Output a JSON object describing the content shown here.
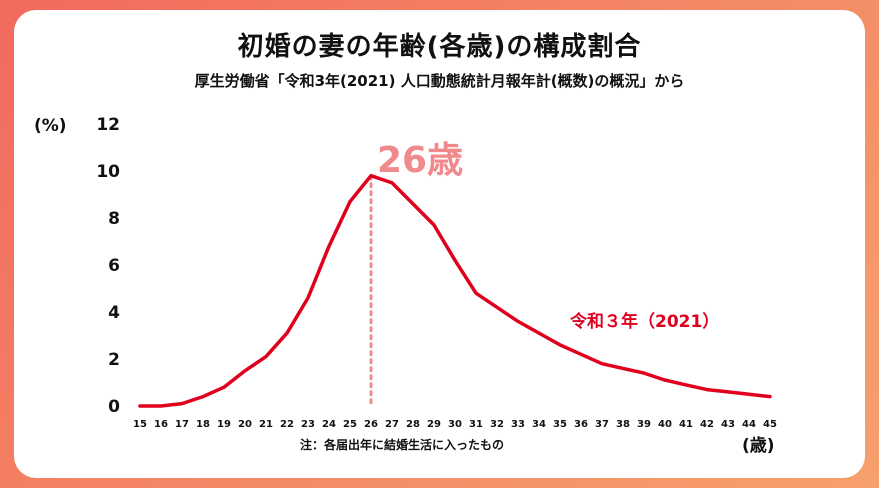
{
  "title": "初婚の妻の年齢(各歳)の構成割合",
  "subtitle": "厚生労働省「令和3年(2021) 人口動態統計月報年計(概数)の概況」から",
  "y_unit": "(%)",
  "x_unit": "(歳)",
  "note": "注：各届出年に結婚生活に入ったもの",
  "peak_label": "26歳",
  "colors": {
    "frame": "#f07a62",
    "line": "#e0001e",
    "peak_line": "#f08a8c",
    "peak_text": "#f08a8c"
  },
  "chart_data": {
    "type": "line",
    "title": "初婚の妻の年齢(各歳)の構成割合",
    "subtitle": "厚生労働省「令和3年(2021) 人口動態統計月報年計(概数)の概況」から",
    "xlabel": "(歳)",
    "ylabel": "(%)",
    "x": [
      15,
      16,
      17,
      18,
      19,
      20,
      21,
      22,
      23,
      24,
      25,
      26,
      27,
      28,
      29,
      30,
      31,
      32,
      33,
      34,
      35,
      36,
      37,
      38,
      39,
      40,
      41,
      42,
      43,
      44,
      45
    ],
    "y_ticks": [
      0,
      2,
      4,
      6,
      8,
      10,
      12
    ],
    "ylim": [
      0,
      12
    ],
    "grid": false,
    "series": [
      {
        "name": "令和３年（2021）",
        "values": [
          0.0,
          0.0,
          0.1,
          0.4,
          0.8,
          1.5,
          2.1,
          3.1,
          4.6,
          6.8,
          8.7,
          9.8,
          9.5,
          8.6,
          7.7,
          6.2,
          4.8,
          4.2,
          3.6,
          3.1,
          2.6,
          2.2,
          1.8,
          1.6,
          1.4,
          1.1,
          0.9,
          0.7,
          0.6,
          0.5,
          0.4
        ]
      }
    ],
    "annotations": [
      {
        "text": "26歳",
        "x": 26
      }
    ]
  }
}
